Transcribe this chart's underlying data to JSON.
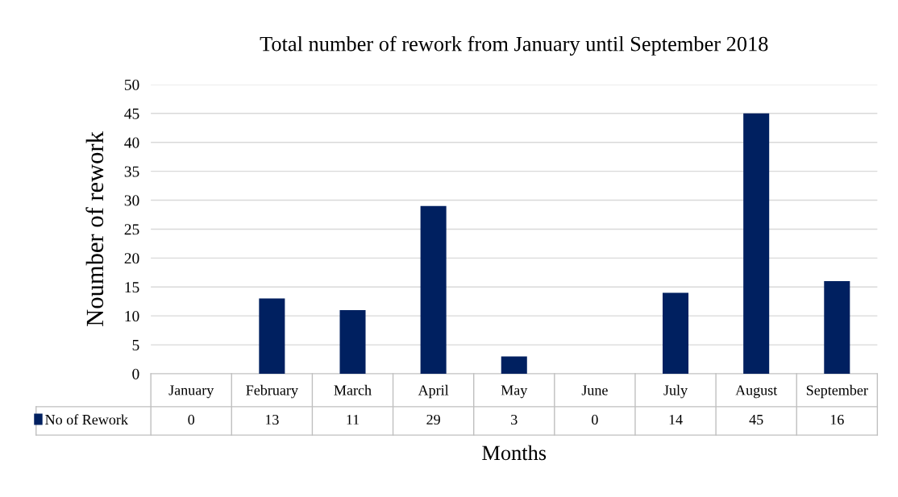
{
  "chart_data": {
    "type": "bar",
    "title": "Total number of rework from January until September 2018",
    "xlabel": "Months",
    "ylabel": "Noumber of rework",
    "categories": [
      "January",
      "February",
      "March",
      "April",
      "May",
      "June",
      "July",
      "August",
      "September"
    ],
    "series": [
      {
        "name": "No of Rework",
        "color": "#002060",
        "values": [
          0,
          13,
          11,
          29,
          3,
          0,
          14,
          45,
          16
        ]
      }
    ],
    "ylim": [
      0,
      50
    ],
    "yticks": [
      0,
      5,
      10,
      15,
      20,
      25,
      30,
      35,
      40,
      45,
      50
    ],
    "grid": "y",
    "data_labels": true,
    "legend": "bottom left"
  }
}
